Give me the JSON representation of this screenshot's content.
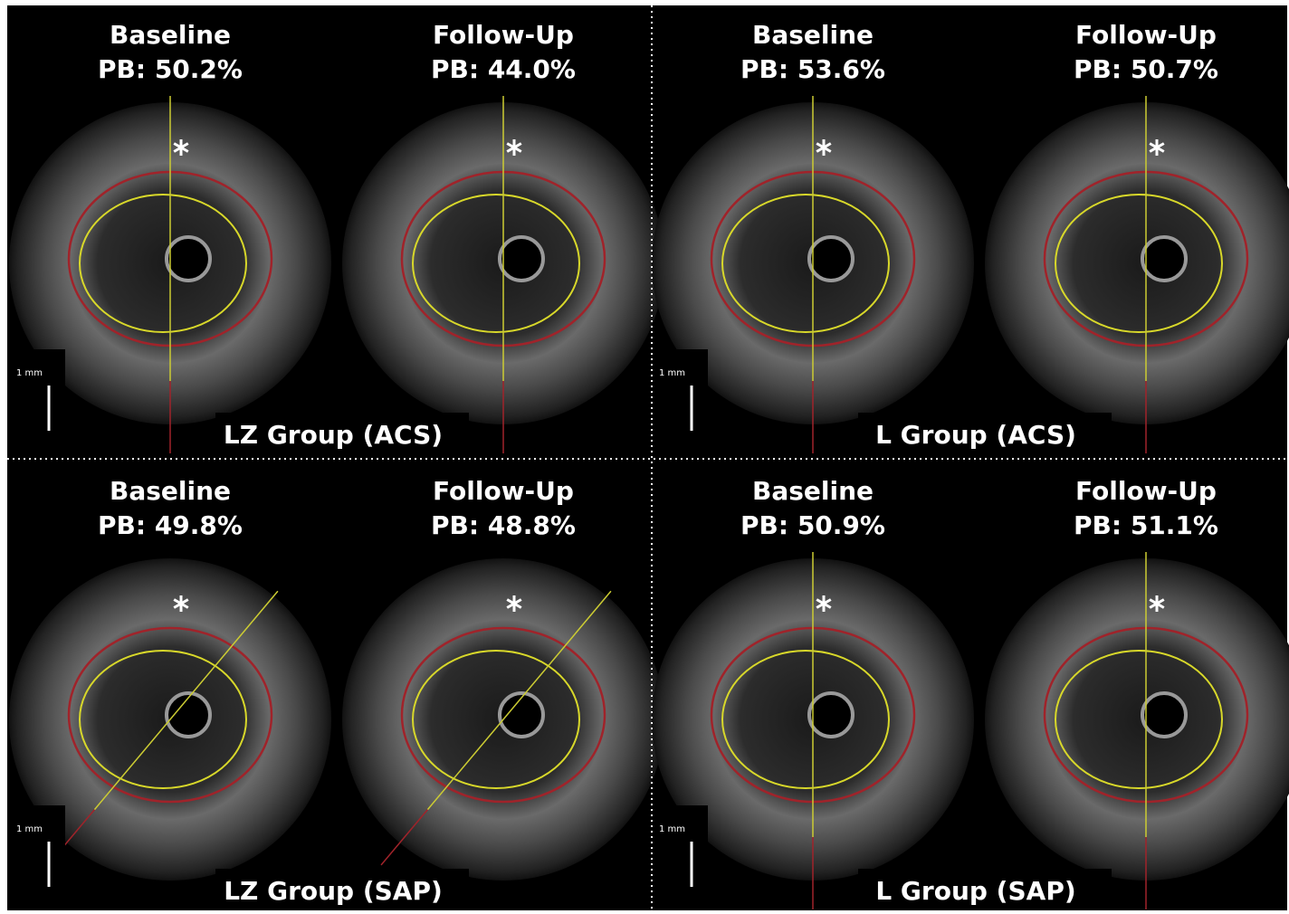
{
  "panels": [
    {
      "group": "LZ Group (ACS)",
      "scale": "1 mm",
      "images": [
        {
          "label": "Baseline",
          "pb": "PB: 50.2%"
        },
        {
          "label": "Follow-Up",
          "pb": "PB: 44.0%"
        }
      ]
    },
    {
      "group": "L Group (ACS)",
      "scale": "1 mm",
      "images": [
        {
          "label": "Baseline",
          "pb": "PB: 53.6%"
        },
        {
          "label": "Follow-Up",
          "pb": "PB: 50.7%"
        }
      ]
    },
    {
      "group": "LZ Group (SAP)",
      "scale": "1 mm",
      "images": [
        {
          "label": "Baseline",
          "pb": "PB: 49.8%"
        },
        {
          "label": "Follow-Up",
          "pb": "PB: 48.8%"
        }
      ]
    },
    {
      "group": "L Group (SAP)",
      "scale": "1 mm",
      "images": [
        {
          "label": "Baseline",
          "pb": "PB: 50.9%"
        },
        {
          "label": "Follow-Up",
          "pb": "PB: 51.1%"
        }
      ]
    }
  ]
}
